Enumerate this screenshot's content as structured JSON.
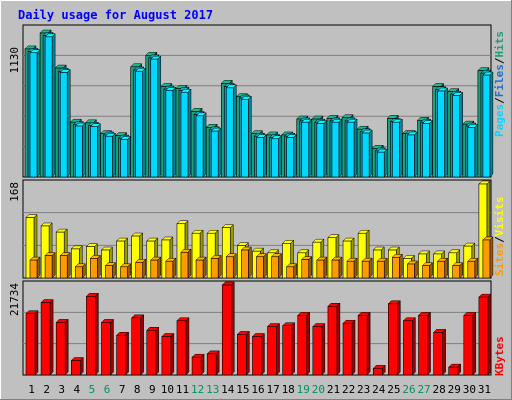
{
  "title": "Daily usage for August 2017",
  "colors": {
    "background": "#c0c0c0",
    "plot": "#c0c0c0",
    "title": "#0000ff",
    "pages": "#00d8ff",
    "files": "#1aa07a",
    "hits": "#1aa07a",
    "sites": "#ff9a00",
    "visits": "#ffff00",
    "kbytes": "#ff0000",
    "weekend_label": "#009060",
    "weekday_label": "#000000",
    "grid": "#7f7f7f"
  },
  "chart_data": [
    {
      "type": "bar",
      "panel": "top",
      "ymax_label": "1130",
      "ylim": [
        0,
        1130
      ],
      "legend": [
        "Pages",
        "Files",
        "Hits"
      ],
      "categories": [
        "1",
        "2",
        "3",
        "4",
        "5",
        "6",
        "7",
        "8",
        "9",
        "10",
        "11",
        "12",
        "13",
        "14",
        "15",
        "16",
        "17",
        "18",
        "19",
        "20",
        "21",
        "22",
        "23",
        "24",
        "25",
        "26",
        "27",
        "28",
        "29",
        "30",
        "31"
      ],
      "weekend": [
        5,
        6,
        12,
        13,
        19,
        20,
        26,
        27
      ],
      "series": [
        {
          "name": "Hits",
          "values": [
            1005,
            1130,
            855,
            430,
            425,
            340,
            325,
            865,
            955,
            710,
            695,
            515,
            390,
            735,
            630,
            340,
            330,
            330,
            455,
            455,
            460,
            465,
            375,
            225,
            460,
            340,
            445,
            710,
            670,
            415,
            835
          ]
        },
        {
          "name": "Files",
          "values": [
            985,
            1110,
            830,
            410,
            405,
            330,
            305,
            840,
            935,
            690,
            680,
            490,
            370,
            710,
            620,
            320,
            310,
            320,
            440,
            430,
            440,
            440,
            355,
            205,
            435,
            340,
            430,
            685,
            650,
            400,
            815
          ]
        },
        {
          "name": "Pages",
          "values": [
            975,
            1100,
            820,
            400,
            395,
            320,
            295,
            830,
            925,
            680,
            665,
            480,
            360,
            700,
            610,
            310,
            300,
            310,
            430,
            420,
            430,
            430,
            345,
            195,
            430,
            330,
            420,
            675,
            640,
            390,
            800
          ]
        }
      ]
    },
    {
      "type": "bar",
      "panel": "middle",
      "ymax_label": "168",
      "ylim": [
        0,
        168
      ],
      "legend": [
        "Sites",
        "Visits"
      ],
      "categories": [
        "1",
        "2",
        "3",
        "4",
        "5",
        "6",
        "7",
        "8",
        "9",
        "10",
        "11",
        "12",
        "13",
        "14",
        "15",
        "16",
        "17",
        "18",
        "19",
        "20",
        "21",
        "22",
        "23",
        "24",
        "25",
        "26",
        "27",
        "28",
        "29",
        "30",
        "31"
      ],
      "series": [
        {
          "name": "Visits",
          "values": [
            108,
            93,
            82,
            52,
            56,
            50,
            66,
            75,
            66,
            68,
            97,
            80,
            80,
            90,
            58,
            48,
            45,
            62,
            45,
            64,
            72,
            66,
            80,
            50,
            50,
            35,
            43,
            43,
            45,
            57,
            168
          ]
        },
        {
          "name": "Sites",
          "values": [
            32,
            40,
            40,
            20,
            35,
            22,
            20,
            28,
            32,
            30,
            46,
            32,
            35,
            38,
            50,
            38,
            38,
            20,
            33,
            32,
            32,
            30,
            30,
            30,
            37,
            25,
            22,
            30,
            22,
            30,
            68
          ]
        }
      ]
    },
    {
      "type": "bar",
      "panel": "bottom",
      "ymax_label": "21734",
      "ylim": [
        0,
        21734
      ],
      "legend": [
        "KBytes"
      ],
      "categories": [
        "1",
        "2",
        "3",
        "4",
        "5",
        "6",
        "7",
        "8",
        "9",
        "10",
        "11",
        "12",
        "13",
        "14",
        "15",
        "16",
        "17",
        "18",
        "19",
        "20",
        "21",
        "22",
        "23",
        "24",
        "25",
        "26",
        "27",
        "28",
        "29",
        "30",
        "31"
      ],
      "series": [
        {
          "name": "KBytes",
          "values": [
            14800,
            17500,
            12700,
            3500,
            19000,
            12700,
            9600,
            13800,
            10800,
            9300,
            13100,
            4300,
            5100,
            21734,
            9800,
            9300,
            11700,
            11900,
            14400,
            11700,
            16600,
            12500,
            14400,
            1600,
            17200,
            13100,
            14400,
            10300,
            1900,
            14400,
            18800
          ]
        }
      ]
    }
  ]
}
